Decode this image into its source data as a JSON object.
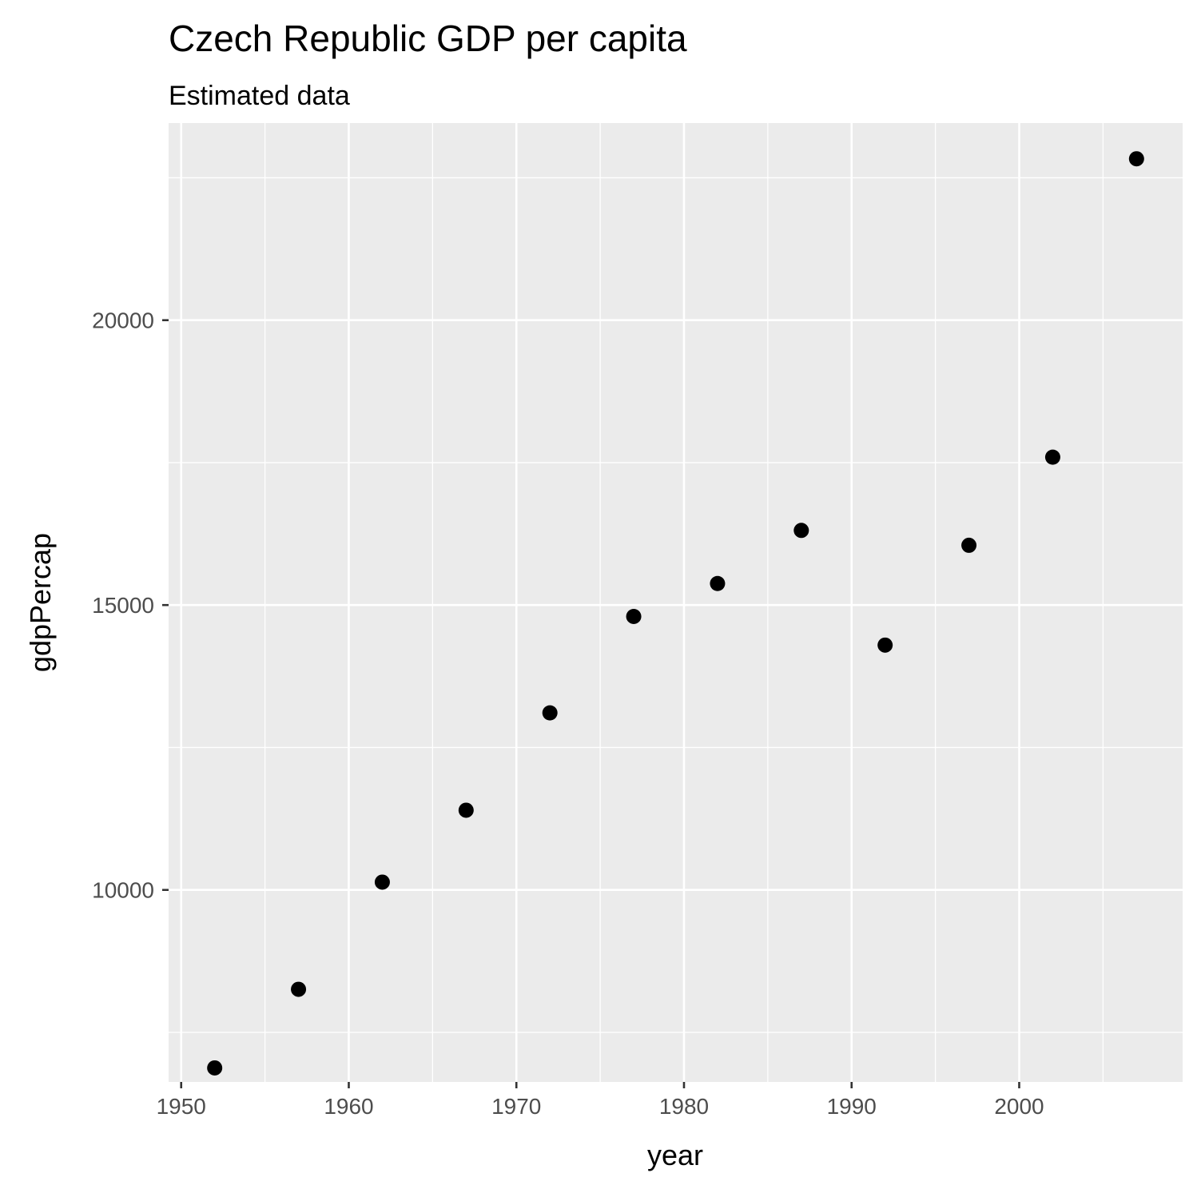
{
  "chart_data": {
    "type": "scatter",
    "title": "Czech Republic GDP per capita",
    "subtitle": "Estimated data",
    "xlabel": "year",
    "ylabel": "gdpPercap",
    "xlim": [
      1949.25,
      2009.75
    ],
    "ylim": [
      6630,
      23460
    ],
    "x_ticks": [
      1950,
      1960,
      1970,
      1980,
      1990,
      2000
    ],
    "x_minor_ticks": [
      1955,
      1965,
      1975,
      1985,
      1995,
      2005
    ],
    "y_ticks": [
      10000,
      15000,
      20000
    ],
    "y_minor_ticks": [
      7500,
      12500,
      17500,
      22500
    ],
    "grid": true,
    "colors": {
      "panel": "#ebebeb",
      "point": "#000000"
    },
    "x": [
      1952,
      1957,
      1962,
      1967,
      1972,
      1977,
      1982,
      1987,
      1992,
      1997,
      2002,
      2007
    ],
    "y": [
      6876,
      8256,
      10137,
      11399,
      13108,
      14800,
      15378,
      16310,
      14297,
      16049,
      17596,
      22833
    ]
  }
}
